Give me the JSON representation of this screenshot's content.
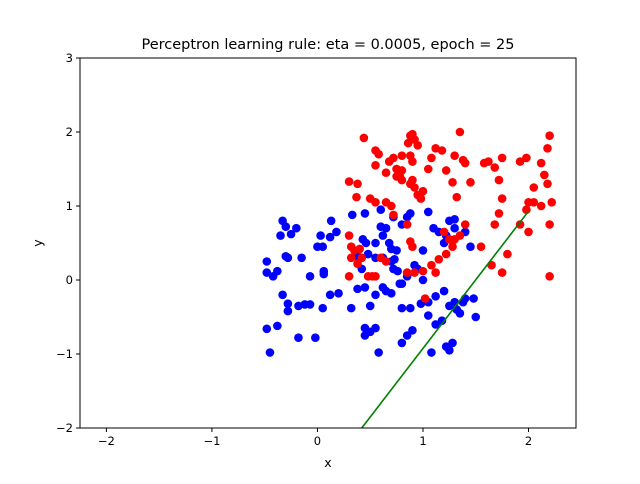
{
  "chart_data": {
    "type": "scatter",
    "title": "Perceptron learning rule: eta = 0.0005, epoch = 25",
    "xlabel": "x",
    "ylabel": "y",
    "xlim": [
      -2.25,
      2.45
    ],
    "ylim": [
      -2,
      3
    ],
    "xticks": [
      -2,
      -1,
      0,
      1,
      2
    ],
    "xtick_labels": [
      "−2",
      "−1",
      "0",
      "1",
      "2"
    ],
    "yticks": [
      -2,
      -1,
      0,
      1,
      2,
      3
    ],
    "ytick_labels": [
      "−2",
      "−1",
      "0",
      "1",
      "2",
      "3"
    ],
    "grid": false,
    "legend": false,
    "colors": {
      "class_a": "#0000ff",
      "class_b": "#ff0000",
      "boundary": "#008000"
    },
    "boundary_line": {
      "x": [
        0.42,
        2.0
      ],
      "y": [
        -2.0,
        0.93
      ]
    },
    "series": [
      {
        "color": "#0000ff",
        "points": [
          [
            -0.48,
            0.25
          ],
          [
            -0.48,
            0.1
          ],
          [
            -0.42,
            0.05
          ],
          [
            -0.38,
            0.12
          ],
          [
            -0.33,
            0.8
          ],
          [
            -0.3,
            0.72
          ],
          [
            -0.35,
            0.6
          ],
          [
            -0.25,
            0.62
          ],
          [
            -0.3,
            0.32
          ],
          [
            -0.28,
            0.3
          ],
          [
            -0.2,
            0.7
          ],
          [
            -0.15,
            0.3
          ],
          [
            -0.33,
            -0.2
          ],
          [
            -0.28,
            -0.32
          ],
          [
            -0.28,
            -0.42
          ],
          [
            -0.18,
            -0.35
          ],
          [
            -0.12,
            -0.33
          ],
          [
            -0.07,
            -0.33
          ],
          [
            -0.48,
            -0.66
          ],
          [
            -0.38,
            -0.62
          ],
          [
            -0.45,
            -0.98
          ],
          [
            -0.18,
            -0.78
          ],
          [
            -0.02,
            -0.78
          ],
          [
            -0.07,
            0.05
          ],
          [
            0.0,
            0.45
          ],
          [
            0.05,
            0.45
          ],
          [
            0.03,
            0.6
          ],
          [
            0.12,
            0.58
          ],
          [
            0.13,
            0.8
          ],
          [
            0.18,
            0.65
          ],
          [
            0.06,
            0.12
          ],
          [
            0.06,
            0.08
          ],
          [
            0.05,
            -0.38
          ],
          [
            0.12,
            -0.2
          ],
          [
            0.2,
            -0.18
          ],
          [
            0.32,
            -0.38
          ],
          [
            0.45,
            0.9
          ],
          [
            0.33,
            0.88
          ],
          [
            0.43,
            0.55
          ],
          [
            0.46,
            0.5
          ],
          [
            0.38,
            0.32
          ],
          [
            0.48,
            0.35
          ],
          [
            0.42,
            0.15
          ],
          [
            0.55,
            0.5
          ],
          [
            0.6,
            0.95
          ],
          [
            0.62,
            0.6
          ],
          [
            0.6,
            0.72
          ],
          [
            0.65,
            0.7
          ],
          [
            0.68,
            0.5
          ],
          [
            0.7,
            0.42
          ],
          [
            0.72,
            0.85
          ],
          [
            0.75,
            0.4
          ],
          [
            0.73,
            0.28
          ],
          [
            0.8,
            0.75
          ],
          [
            0.85,
            0.85
          ],
          [
            0.88,
            0.9
          ],
          [
            0.55,
            0.3
          ],
          [
            0.62,
            0.3
          ],
          [
            0.7,
            0.25
          ],
          [
            0.72,
            0.15
          ],
          [
            0.76,
            0.12
          ],
          [
            0.8,
            -0.05
          ],
          [
            0.85,
            0.05
          ],
          [
            0.92,
            0.2
          ],
          [
            0.95,
            0.15
          ],
          [
            1.0,
            0.4
          ],
          [
            1.05,
            0.92
          ],
          [
            1.1,
            0.7
          ],
          [
            1.15,
            0.65
          ],
          [
            1.2,
            0.5
          ],
          [
            1.22,
            0.6
          ],
          [
            1.25,
            0.8
          ],
          [
            1.3,
            0.7
          ],
          [
            1.3,
            0.82
          ],
          [
            1.4,
            0.65
          ],
          [
            1.45,
            0.45
          ],
          [
            0.38,
            -0.12
          ],
          [
            0.45,
            -0.1
          ],
          [
            0.5,
            -0.35
          ],
          [
            0.55,
            -0.2
          ],
          [
            0.62,
            -0.1
          ],
          [
            0.65,
            -0.15
          ],
          [
            0.7,
            -0.18
          ],
          [
            0.78,
            -0.05
          ],
          [
            0.8,
            -0.38
          ],
          [
            0.88,
            -0.38
          ],
          [
            0.98,
            -0.32
          ],
          [
            1.0,
            0.0
          ],
          [
            1.05,
            -0.3
          ],
          [
            1.12,
            -0.22
          ],
          [
            1.2,
            -0.15
          ],
          [
            1.25,
            -0.35
          ],
          [
            1.3,
            -0.3
          ],
          [
            1.35,
            -0.45
          ],
          [
            1.4,
            -0.25
          ],
          [
            1.48,
            -0.25
          ],
          [
            1.5,
            -0.5
          ],
          [
            0.45,
            -0.75
          ],
          [
            0.5,
            -0.7
          ],
          [
            0.55,
            -0.65
          ],
          [
            0.58,
            -0.98
          ],
          [
            0.45,
            -0.65
          ],
          [
            0.8,
            -0.85
          ],
          [
            0.85,
            -0.75
          ],
          [
            0.9,
            -0.68
          ],
          [
            1.05,
            -0.48
          ],
          [
            1.08,
            -0.98
          ],
          [
            1.12,
            -0.6
          ],
          [
            1.18,
            -0.55
          ],
          [
            1.22,
            -0.9
          ],
          [
            1.25,
            -0.95
          ],
          [
            1.28,
            -0.85
          ],
          [
            1.32,
            -0.4
          ],
          [
            1.38,
            -0.3
          ]
        ]
      },
      {
        "color": "#ff0000",
        "points": [
          [
            0.44,
            1.92
          ],
          [
            0.38,
            1.3
          ],
          [
            0.3,
            1.33
          ],
          [
            0.37,
            1.12
          ],
          [
            0.5,
            1.1
          ],
          [
            0.55,
            1.05
          ],
          [
            0.55,
            1.55
          ],
          [
            0.55,
            1.75
          ],
          [
            0.58,
            1.7
          ],
          [
            0.65,
            1.45
          ],
          [
            0.68,
            1.6
          ],
          [
            0.72,
            1.65
          ],
          [
            0.75,
            1.5
          ],
          [
            0.75,
            1.4
          ],
          [
            0.78,
            1.4
          ],
          [
            0.8,
            1.35
          ],
          [
            0.8,
            1.48
          ],
          [
            0.8,
            1.68
          ],
          [
            0.86,
            1.85
          ],
          [
            0.88,
            1.95
          ],
          [
            0.9,
            1.97
          ],
          [
            0.92,
            1.9
          ],
          [
            0.95,
            1.82
          ],
          [
            0.88,
            1.68
          ],
          [
            0.9,
            1.6
          ],
          [
            0.88,
            1.3
          ],
          [
            0.9,
            1.35
          ],
          [
            0.92,
            1.25
          ],
          [
            0.95,
            1.15
          ],
          [
            0.98,
            1.1
          ],
          [
            1.0,
            1.2
          ],
          [
            0.65,
            1.05
          ],
          [
            0.7,
            1.0
          ],
          [
            0.72,
            0.88
          ],
          [
            0.85,
            0.75
          ],
          [
            0.88,
            0.52
          ],
          [
            0.9,
            0.45
          ],
          [
            1.05,
            1.5
          ],
          [
            1.08,
            1.65
          ],
          [
            1.12,
            1.78
          ],
          [
            1.18,
            1.75
          ],
          [
            1.22,
            1.48
          ],
          [
            1.28,
            1.32
          ],
          [
            1.32,
            1.12
          ],
          [
            1.35,
            2.0
          ],
          [
            1.38,
            1.62
          ],
          [
            1.4,
            1.58
          ],
          [
            1.45,
            1.32
          ],
          [
            1.3,
            1.68
          ],
          [
            1.4,
            0.75
          ],
          [
            1.35,
            0.6
          ],
          [
            1.3,
            0.55
          ],
          [
            1.28,
            0.45
          ],
          [
            1.25,
            0.55
          ],
          [
            1.2,
            0.65
          ],
          [
            1.22,
            0.35
          ],
          [
            1.15,
            0.28
          ],
          [
            1.08,
            0.2
          ],
          [
            1.12,
            0.1
          ],
          [
            1.0,
            0.12
          ],
          [
            0.92,
            0.1
          ],
          [
            0.85,
            0.1
          ],
          [
            1.02,
            -0.25
          ],
          [
            0.3,
            0.6
          ],
          [
            0.32,
            0.45
          ],
          [
            0.35,
            0.4
          ],
          [
            0.32,
            0.3
          ],
          [
            0.4,
            0.42
          ],
          [
            0.42,
            0.3
          ],
          [
            0.38,
            0.22
          ],
          [
            0.48,
            0.05
          ],
          [
            0.52,
            0.05
          ],
          [
            0.55,
            0.05
          ],
          [
            0.3,
            0.05
          ],
          [
            0.6,
            0.3
          ],
          [
            0.65,
            0.25
          ],
          [
            1.55,
            0.45
          ],
          [
            1.58,
            1.58
          ],
          [
            1.62,
            1.6
          ],
          [
            1.68,
            1.52
          ],
          [
            1.72,
            1.35
          ],
          [
            1.75,
            1.1
          ],
          [
            1.68,
            0.75
          ],
          [
            1.72,
            0.9
          ],
          [
            1.65,
            0.2
          ],
          [
            1.75,
            0.1
          ],
          [
            1.8,
            0.35
          ],
          [
            1.92,
            0.75
          ],
          [
            1.98,
            0.95
          ],
          [
            2.0,
            1.05
          ],
          [
            2.0,
            0.65
          ],
          [
            2.05,
            1.05
          ],
          [
            2.12,
            1.0
          ],
          [
            2.18,
            1.3
          ],
          [
            2.2,
            0.75
          ],
          [
            2.22,
            1.05
          ],
          [
            2.2,
            0.05
          ],
          [
            2.15,
            1.42
          ],
          [
            2.12,
            1.58
          ],
          [
            2.05,
            1.25
          ],
          [
            2.18,
            1.78
          ],
          [
            2.2,
            1.95
          ],
          [
            1.92,
            1.6
          ],
          [
            1.98,
            1.65
          ],
          [
            1.75,
            1.65
          ],
          [
            0.75,
            1.5
          ],
          [
            0.78,
            1.45
          ]
        ]
      }
    ]
  }
}
